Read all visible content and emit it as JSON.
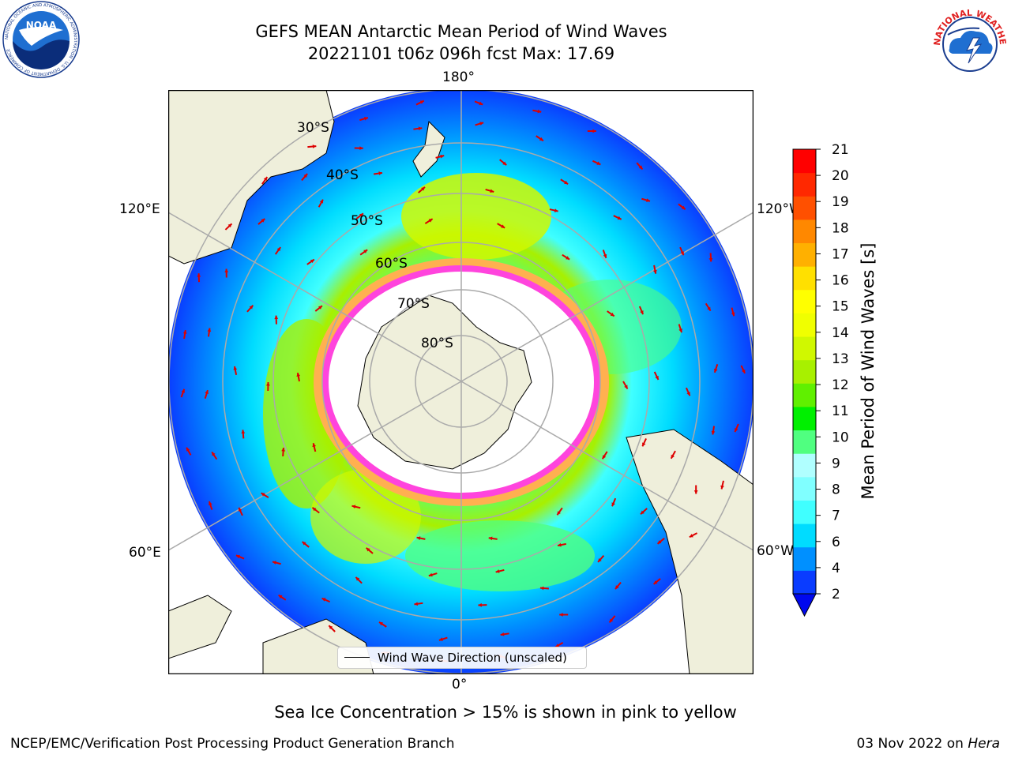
{
  "title_line1": "GEFS MEAN Antarctic Mean Period of Wind Waves",
  "title_line2": "20221101 t06z 096h fcst   Max: 17.69",
  "logos": {
    "left": "noaa-logo",
    "right": "nws-logo",
    "left_ring_text": "NATIONAL OCEANIC AND ATMOSPHERIC ADMINISTRATION · U.S. DEPARTMENT OF COMMERCE",
    "left_center_text": "NOAA",
    "right_ring_text": "NATIONAL WEATHER SERVICE"
  },
  "map": {
    "projection": "south-polar-stereographic",
    "lon_labels": {
      "top": "180°",
      "bottom": "0°",
      "left_upper": "120°E",
      "right_upper": "120°W",
      "left_lower": "60°E",
      "right_lower": "60°W"
    },
    "lat_labels": [
      "30°S",
      "40°S",
      "50°S",
      "60°S",
      "70°S",
      "80°S"
    ],
    "legend_label": "Wind Wave Direction (unscaled)",
    "colors": {
      "land": "#efefdb",
      "ice_pink": "#ff44dd",
      "ice_orange": "#ffb050",
      "arrow": "#dd0000"
    }
  },
  "colorbar": {
    "label": "Mean Period of Wind Waves [s]",
    "ticks": [
      "2",
      "4",
      "6",
      "7",
      "8",
      "9",
      "10",
      "11",
      "12",
      "13",
      "14",
      "15",
      "16",
      "17",
      "18",
      "19",
      "20",
      "21"
    ],
    "colors": [
      "#0a3cff",
      "#0090ff",
      "#00dcff",
      "#40ffff",
      "#80ffff",
      "#b0ffff",
      "#50ff80",
      "#00f000",
      "#60f000",
      "#a8f000",
      "#d0f800",
      "#f0ff00",
      "#ffff00",
      "#ffe000",
      "#ffb000",
      "#ff8800",
      "#ff5000",
      "#ff2800",
      "#ff0000"
    ],
    "extend_below_color": "#0008ee"
  },
  "note": "Sea Ice Concentration > 15% is shown in pink to yellow",
  "footer": {
    "left": "NCEP/EMC/Verification Post Processing Product Generation Branch",
    "right_date": "03 Nov 2022 on ",
    "right_machine": "Hera"
  }
}
